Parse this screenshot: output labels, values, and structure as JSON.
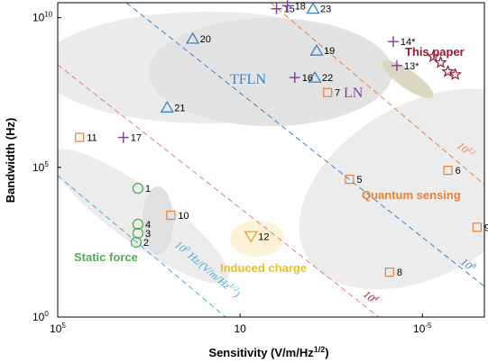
{
  "chart_data": {
    "type": "scatter",
    "xlabel": "Sensitivity (V/m/Hz^1/2)",
    "ylabel": "Bandwidth (Hz)",
    "x_scale": "log",
    "y_scale": "log",
    "x_reversed": true,
    "xlim_log10": [
      5,
      -6.7
    ],
    "ylim_log10": [
      0,
      10.5
    ],
    "x_ticks": [
      {
        "log10": 5,
        "base": "10",
        "exp": "5"
      },
      {
        "log10": 0,
        "base": "10",
        "exp": ""
      },
      {
        "log10": -5,
        "base": "10",
        "exp": "-5"
      }
    ],
    "y_ticks": [
      {
        "log10": 0,
        "base": "10",
        "exp": "0"
      },
      {
        "log10": 5,
        "base": "10",
        "exp": "5"
      },
      {
        "log10": 10,
        "base": "10",
        "exp": "10"
      }
    ],
    "grid": false,
    "series": [
      {
        "marker": "circle",
        "color": "#4caf50",
        "points": [
          {
            "label": "1",
            "sens_log10": 2.8,
            "bw_log10": 4.3
          },
          {
            "label": "2",
            "sens_log10": 2.85,
            "bw_log10": 2.5
          },
          {
            "label": "3",
            "sens_log10": 2.8,
            "bw_log10": 2.8
          },
          {
            "label": "4",
            "sens_log10": 2.8,
            "bw_log10": 3.1
          }
        ]
      },
      {
        "marker": "square",
        "color": "#e8813a",
        "points": [
          {
            "label": "5",
            "sens_log10": -3.0,
            "bw_log10": 4.6
          },
          {
            "label": "6",
            "sens_log10": -5.7,
            "bw_log10": 4.9
          },
          {
            "label": "7",
            "sens_log10": -2.4,
            "bw_log10": 7.5
          },
          {
            "label": "8",
            "sens_log10": -4.1,
            "bw_log10": 1.5
          },
          {
            "label": "9",
            "sens_log10": -6.5,
            "bw_log10": 3.0
          },
          {
            "label": "10",
            "sens_log10": 1.9,
            "bw_log10": 3.4
          },
          {
            "label": "11",
            "sens_log10": 4.4,
            "bw_log10": 6.0
          }
        ]
      },
      {
        "marker": "triangle-up",
        "color": "#3b82c4",
        "points": [
          {
            "label": "19",
            "sens_log10": -2.1,
            "bw_log10": 8.9
          },
          {
            "label": "20",
            "sens_log10": 1.3,
            "bw_log10": 9.3
          },
          {
            "label": "21",
            "sens_log10": 2.0,
            "bw_log10": 7.0
          },
          {
            "label": "22",
            "sens_log10": -2.05,
            "bw_log10": 8.0
          },
          {
            "label": "23",
            "sens_log10": -2.0,
            "bw_log10": 10.3
          }
        ]
      },
      {
        "marker": "triangle-down",
        "color": "#e8a020",
        "points": [
          {
            "label": "12",
            "sens_log10": -0.3,
            "bw_log10": 2.7
          }
        ]
      },
      {
        "marker": "plus",
        "color": "#7b3fa0",
        "points": [
          {
            "label": "13*",
            "sens_log10": -4.3,
            "bw_log10": 8.4
          },
          {
            "label": "14*",
            "sens_log10": -4.2,
            "bw_log10": 9.2
          },
          {
            "label": "15",
            "sens_log10": -1.0,
            "bw_log10": 10.3
          },
          {
            "label": "16",
            "sens_log10": -1.5,
            "bw_log10": 8.0
          },
          {
            "label": "17",
            "sens_log10": 3.2,
            "bw_log10": 6.0
          },
          {
            "label": "18",
            "sens_log10": -1.3,
            "bw_log10": 10.4
          }
        ]
      },
      {
        "marker": "star",
        "color": "#a0182a",
        "points": [
          {
            "label": "",
            "sens_log10": -5.3,
            "bw_log10": 8.7
          },
          {
            "label": "",
            "sens_log10": -5.5,
            "bw_log10": 8.5
          },
          {
            "label": "",
            "sens_log10": -5.7,
            "bw_log10": 8.2
          },
          {
            "label": "",
            "sens_log10": -5.9,
            "bw_log10": 8.1
          }
        ]
      }
    ],
    "annotations": [
      {
        "text": "This paper",
        "color": "#a0182a",
        "kind": "region"
      },
      {
        "text": "TFLN",
        "color": "#3b82c4",
        "kind": "serif"
      },
      {
        "text": "LN",
        "color": "#7b3fa0",
        "kind": "serif"
      },
      {
        "text": "Quantum sensing",
        "color": "#e8813a",
        "kind": "region"
      },
      {
        "text": "Static force",
        "color": "#4caf50",
        "kind": "region"
      },
      {
        "text": "Induced charge",
        "color": "#e8c020",
        "kind": "region"
      }
    ],
    "guide_lines": [
      {
        "label_base": "10",
        "label_exp": "12",
        "color": "#e8813a"
      },
      {
        "label_base": "10",
        "label_exp": "8",
        "color": "#3b82c4"
      },
      {
        "label_base": "10",
        "label_exp": "4",
        "color": "#a0182a"
      },
      {
        "label_base": "10",
        "label_exp": "0",
        "label_suffix": " Hz/(V/m/Hz",
        "label_suffix_exp": "1/2",
        "label_close": ")",
        "color": "#4aa8d8"
      }
    ]
  }
}
